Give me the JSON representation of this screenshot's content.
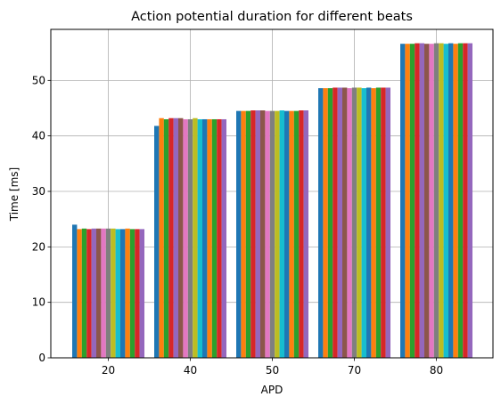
{
  "chart_data": {
    "type": "bar",
    "title": "Action potential duration for different beats",
    "xlabel": "APD",
    "ylabel": "Time [ms]",
    "ylim": [
      0,
      59.2
    ],
    "yticks": [
      "0",
      "10",
      "20",
      "30",
      "40",
      "50"
    ],
    "categories": [
      "20",
      "40",
      "50",
      "70",
      "80"
    ],
    "grid": true,
    "legend": "none",
    "palette": [
      "#1f77b4",
      "#ff7f0e",
      "#2ca02c",
      "#d62728",
      "#9467bd",
      "#8c564b",
      "#e377c2",
      "#7f7f7f",
      "#bcbd22",
      "#17becf"
    ],
    "series": [
      {
        "values": [
          24.0,
          41.8,
          44.5,
          48.6,
          56.6
        ]
      },
      {
        "values": [
          23.2,
          43.2,
          44.5,
          48.6,
          56.6
        ]
      },
      {
        "values": [
          23.3,
          43.0,
          44.5,
          48.6,
          56.6
        ]
      },
      {
        "values": [
          23.2,
          43.2,
          44.6,
          48.7,
          56.7
        ]
      },
      {
        "values": [
          23.3,
          43.2,
          44.6,
          48.7,
          56.7
        ]
      },
      {
        "values": [
          23.3,
          43.2,
          44.6,
          48.7,
          56.6
        ]
      },
      {
        "values": [
          23.3,
          43.0,
          44.5,
          48.6,
          56.6
        ]
      },
      {
        "values": [
          23.3,
          43.0,
          44.5,
          48.7,
          56.7
        ]
      },
      {
        "values": [
          23.3,
          43.2,
          44.5,
          48.7,
          56.7
        ]
      },
      {
        "values": [
          23.2,
          43.0,
          44.6,
          48.6,
          56.6
        ]
      },
      {
        "values": [
          23.2,
          43.0,
          44.5,
          48.7,
          56.7
        ]
      },
      {
        "values": [
          23.3,
          43.0,
          44.5,
          48.6,
          56.6
        ]
      },
      {
        "values": [
          23.2,
          43.0,
          44.5,
          48.7,
          56.7
        ]
      },
      {
        "values": [
          23.2,
          43.0,
          44.6,
          48.7,
          56.7
        ]
      },
      {
        "values": [
          23.2,
          43.0,
          44.6,
          48.7,
          56.7
        ]
      }
    ]
  }
}
